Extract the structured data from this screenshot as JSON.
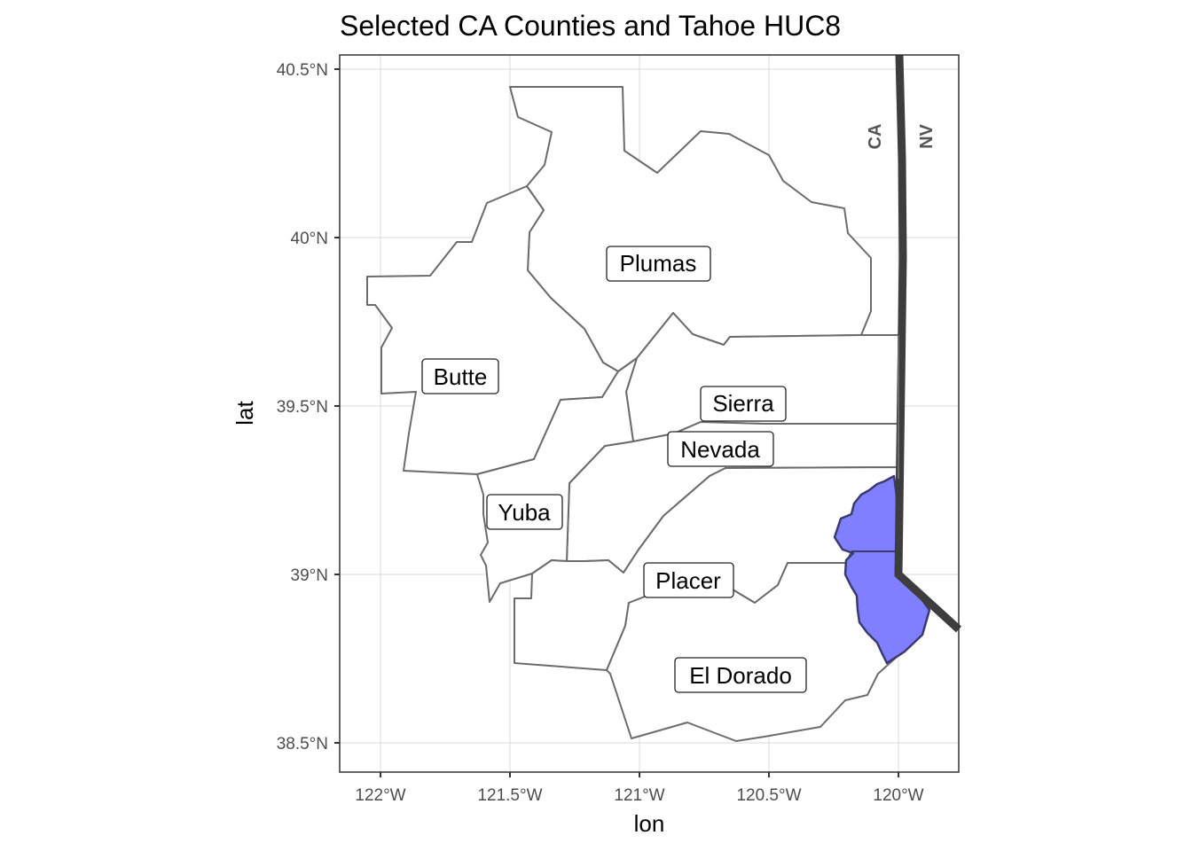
{
  "title": "Selected CA Counties and Tahoe HUC8",
  "x_axis_title": "lon",
  "y_axis_title": "lat",
  "x_ticks": [
    "122°W",
    "121.5°W",
    "121°W",
    "120.5°W",
    "120°W"
  ],
  "y_ticks": [
    "40.5°N",
    "40°N",
    "39.5°N",
    "39°N",
    "38.5°N"
  ],
  "counties": [
    {
      "name": "Plumas"
    },
    {
      "name": "Butte"
    },
    {
      "name": "Sierra"
    },
    {
      "name": "Nevada"
    },
    {
      "name": "Yuba"
    },
    {
      "name": "Placer"
    },
    {
      "name": "El Dorado"
    }
  ],
  "state_labels": {
    "west": "CA",
    "east": "NV"
  },
  "colors": {
    "huc_fill": "#7f7fff",
    "huc_stroke": "#3a3a6e",
    "state_boundary": "#3d3d3d",
    "county_stroke": "#6b6b6b",
    "grid": "#d9d9d9",
    "panel_border": "#333333"
  },
  "chart_data": {
    "type": "map",
    "title": "Selected CA Counties and Tahoe HUC8",
    "xlabel": "lon",
    "ylabel": "lat",
    "xlim": [
      -122.12,
      -119.82
    ],
    "ylim": [
      38.41,
      40.55
    ],
    "x_breaks": [
      -122,
      -121.5,
      -121,
      -120.5,
      -120
    ],
    "y_breaks": [
      40.5,
      40,
      39.5,
      39,
      38.5
    ],
    "grid": true,
    "highlighted_region": "Tahoe HUC8",
    "label_positions": [
      {
        "name": "Plumas",
        "lon": -120.94,
        "lat": 39.92
      },
      {
        "name": "Butte",
        "lon": -121.69,
        "lat": 39.58
      },
      {
        "name": "Sierra",
        "lon": -120.61,
        "lat": 39.5
      },
      {
        "name": "Nevada",
        "lon": -120.69,
        "lat": 39.36
      },
      {
        "name": "Yuba",
        "lon": -121.48,
        "lat": 39.18
      },
      {
        "name": "Placer",
        "lon": -120.82,
        "lat": 38.97
      },
      {
        "name": "El Dorado",
        "lon": -120.62,
        "lat": 38.69
      }
    ]
  }
}
